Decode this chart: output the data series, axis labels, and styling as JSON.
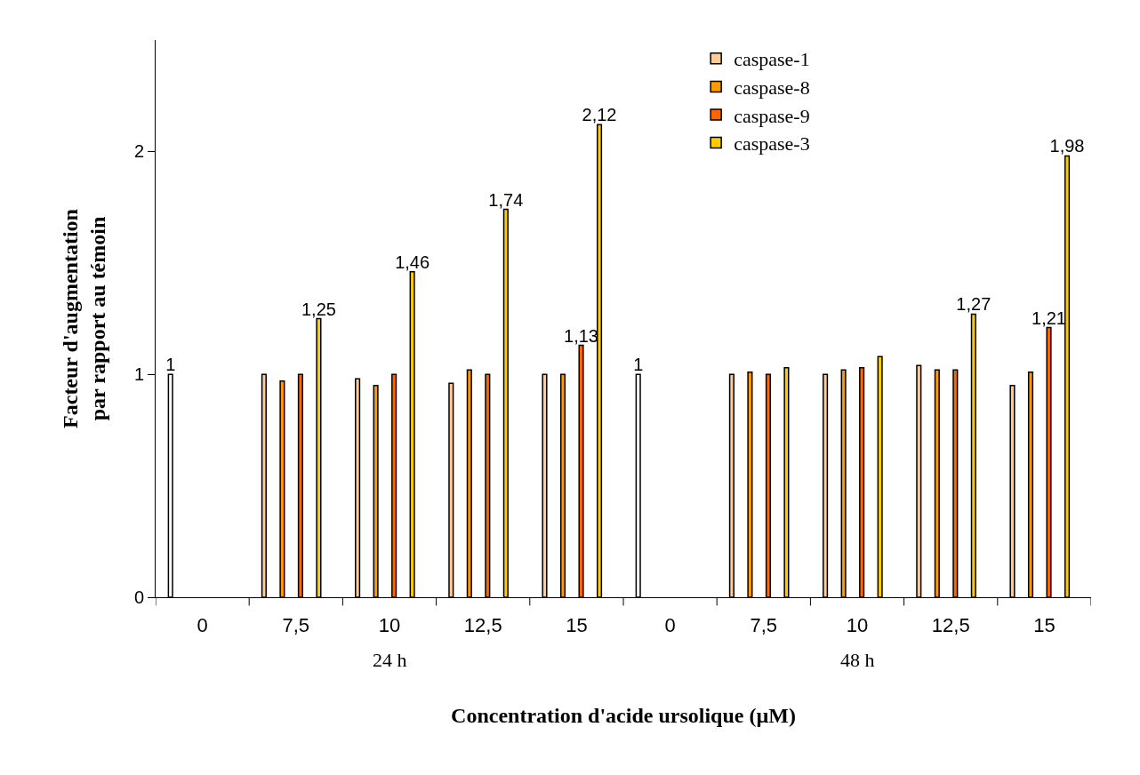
{
  "chart_data": {
    "type": "bar",
    "xlabel": "Concentration d'acide ursolique (µM)",
    "ylabel": "Facteur d'augmentation\npar rapport au témoin",
    "categories": [
      "0",
      "7,5",
      "10",
      "12,5",
      "15",
      "0",
      "7,5",
      "10",
      "12,5",
      "15"
    ],
    "ylim": [
      0,
      2.5
    ],
    "yticks": [
      0,
      1,
      2
    ],
    "grid": false,
    "legend": "top right",
    "annotations": [
      "24 h",
      "48 h"
    ],
    "series": [
      {
        "name": "caspase-1",
        "color": "#ffcc99",
        "colors": [
          "#ffffff",
          "#ffcc99",
          "#ffcc99",
          "#ffcc99",
          "#ffcc99",
          "#ffffff",
          "#ffcc99",
          "#ffcc99",
          "#ffcc99",
          "#ffcc99"
        ],
        "values": [
          1,
          1.0,
          0.98,
          0.96,
          1.0,
          1,
          1.0,
          1.0,
          1.04,
          0.95
        ],
        "value_labels": [
          "1",
          null,
          null,
          null,
          null,
          "1",
          null,
          null,
          null,
          null
        ]
      },
      {
        "name": "caspase-8",
        "color": "#ff9900",
        "values": [
          null,
          0.97,
          0.95,
          1.02,
          1.0,
          null,
          1.01,
          1.02,
          1.02,
          1.01
        ]
      },
      {
        "name": "caspase-9",
        "color": "#ff6600",
        "values": [
          null,
          1.0,
          1.0,
          1.0,
          1.13,
          null,
          1.0,
          1.03,
          1.02,
          1.21
        ],
        "value_labels": [
          null,
          null,
          null,
          null,
          "1,13",
          null,
          null,
          null,
          null,
          "1,21"
        ]
      },
      {
        "name": "caspase-3",
        "color": "#ffcc00",
        "values": [
          null,
          1.25,
          1.46,
          1.74,
          2.12,
          null,
          1.03,
          1.08,
          1.27,
          1.98
        ],
        "value_labels": [
          null,
          "1,25",
          "1,46",
          "1,74",
          "2,12",
          null,
          null,
          null,
          "1,27",
          "1,98"
        ]
      }
    ]
  }
}
